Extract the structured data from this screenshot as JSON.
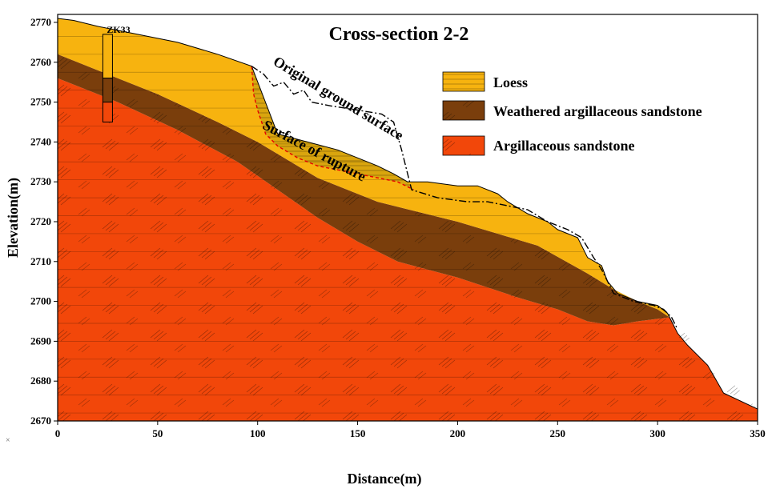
{
  "title": "Cross-section 2-2",
  "axes": {
    "x": {
      "label": "Distance(m)",
      "range": [
        0,
        350
      ],
      "ticks": [
        0,
        50,
        100,
        150,
        200,
        250,
        300,
        350
      ]
    },
    "y": {
      "label": "Elevation(m)",
      "range": [
        2670,
        2772
      ],
      "ticks": [
        2670,
        2680,
        2690,
        2700,
        2710,
        2720,
        2730,
        2740,
        2750,
        2760,
        2770
      ]
    }
  },
  "borehole": {
    "label": "ZK33",
    "x": 25,
    "top": 2767,
    "bottom": 2745,
    "interfaces": [
      2756,
      2750
    ]
  },
  "legend": {
    "placement": "top-right",
    "items": [
      {
        "id": "loess",
        "label": "Loess",
        "color": "#f7b30f"
      },
      {
        "id": "weathered",
        "label": "Weathered argillaceous sandstone",
        "color": "#7a3e0c"
      },
      {
        "id": "argillaceous",
        "label": "Argillaceous sandstone",
        "color": "#f2470a"
      }
    ]
  },
  "annotations": {
    "original_ground": "Original ground surface",
    "rupture": "Surface of rupture"
  },
  "colors": {
    "loess": "#f7b30f",
    "weathered": "#7a3e0c",
    "argillaceous": "#f2470a",
    "landslide": "#d9a50e",
    "rupture_line": "#e60000"
  },
  "profiles": {
    "ground_surface": [
      [
        0,
        2771
      ],
      [
        8,
        2770.5
      ],
      [
        20,
        2769
      ],
      [
        40,
        2767
      ],
      [
        60,
        2765
      ],
      [
        80,
        2762
      ],
      [
        97,
        2759
      ],
      [
        110,
        2742
      ],
      [
        125,
        2740
      ],
      [
        140,
        2738
      ],
      [
        150,
        2736
      ],
      [
        160,
        2734
      ],
      [
        168,
        2732
      ],
      [
        175,
        2730
      ],
      [
        185,
        2730
      ],
      [
        200,
        2729
      ],
      [
        210,
        2729
      ],
      [
        220,
        2727
      ],
      [
        225,
        2725
      ],
      [
        235,
        2722
      ],
      [
        245,
        2720
      ],
      [
        250,
        2718
      ],
      [
        260,
        2716
      ],
      [
        265,
        2711
      ],
      [
        272,
        2709
      ],
      [
        275,
        2705
      ],
      [
        280,
        2702
      ],
      [
        290,
        2700
      ],
      [
        300,
        2699
      ],
      [
        305,
        2697
      ],
      [
        310,
        2692
      ],
      [
        315,
        2689
      ],
      [
        325,
        2684
      ],
      [
        333,
        2677
      ],
      [
        350,
        2673
      ]
    ],
    "weathered_top": [
      [
        0,
        2762
      ],
      [
        20,
        2758
      ],
      [
        50,
        2752
      ],
      [
        80,
        2745
      ],
      [
        100,
        2740
      ],
      [
        130,
        2731
      ],
      [
        160,
        2725
      ],
      [
        200,
        2720
      ],
      [
        240,
        2714
      ],
      [
        265,
        2707
      ],
      [
        278,
        2703
      ],
      [
        290,
        2700
      ],
      [
        300,
        2698
      ],
      [
        306,
        2696
      ]
    ],
    "bedrock_top": [
      [
        0,
        2756
      ],
      [
        30,
        2750
      ],
      [
        60,
        2743
      ],
      [
        90,
        2735
      ],
      [
        110,
        2728
      ],
      [
        130,
        2721
      ],
      [
        150,
        2715
      ],
      [
        170,
        2710
      ],
      [
        200,
        2706
      ],
      [
        230,
        2701
      ],
      [
        250,
        2698
      ],
      [
        265,
        2695
      ],
      [
        278,
        2694
      ],
      [
        290,
        2695
      ],
      [
        306,
        2696
      ],
      [
        310,
        2692
      ],
      [
        315,
        2689
      ],
      [
        325,
        2684
      ],
      [
        333,
        2677
      ],
      [
        350,
        2673
      ]
    ],
    "rupture": [
      [
        97,
        2759
      ],
      [
        98,
        2752
      ],
      [
        100,
        2748
      ],
      [
        104,
        2742
      ],
      [
        110,
        2739
      ],
      [
        120,
        2736
      ],
      [
        130,
        2734
      ],
      [
        140,
        2733
      ],
      [
        150,
        2732
      ],
      [
        160,
        2731
      ],
      [
        170,
        2730
      ],
      [
        178,
        2728
      ]
    ],
    "original_ground": [
      [
        97,
        2759
      ],
      [
        103,
        2757
      ],
      [
        108,
        2754
      ],
      [
        113,
        2755
      ],
      [
        118,
        2752
      ],
      [
        123,
        2753
      ],
      [
        127,
        2750
      ],
      [
        137,
        2749
      ],
      [
        150,
        2748
      ],
      [
        162,
        2747
      ],
      [
        168,
        2745
      ],
      [
        172,
        2738
      ],
      [
        175,
        2732
      ],
      [
        177,
        2728
      ],
      [
        190,
        2726
      ],
      [
        205,
        2725
      ],
      [
        215,
        2725
      ],
      [
        225,
        2724
      ],
      [
        235,
        2723
      ],
      [
        245,
        2720
      ],
      [
        255,
        2718
      ],
      [
        262,
        2716
      ],
      [
        268,
        2711
      ],
      [
        272,
        2708
      ],
      [
        278,
        2702
      ],
      [
        288,
        2700
      ],
      [
        298,
        2699
      ],
      [
        303,
        2698
      ],
      [
        307,
        2696
      ],
      [
        310,
        2693
      ]
    ]
  }
}
